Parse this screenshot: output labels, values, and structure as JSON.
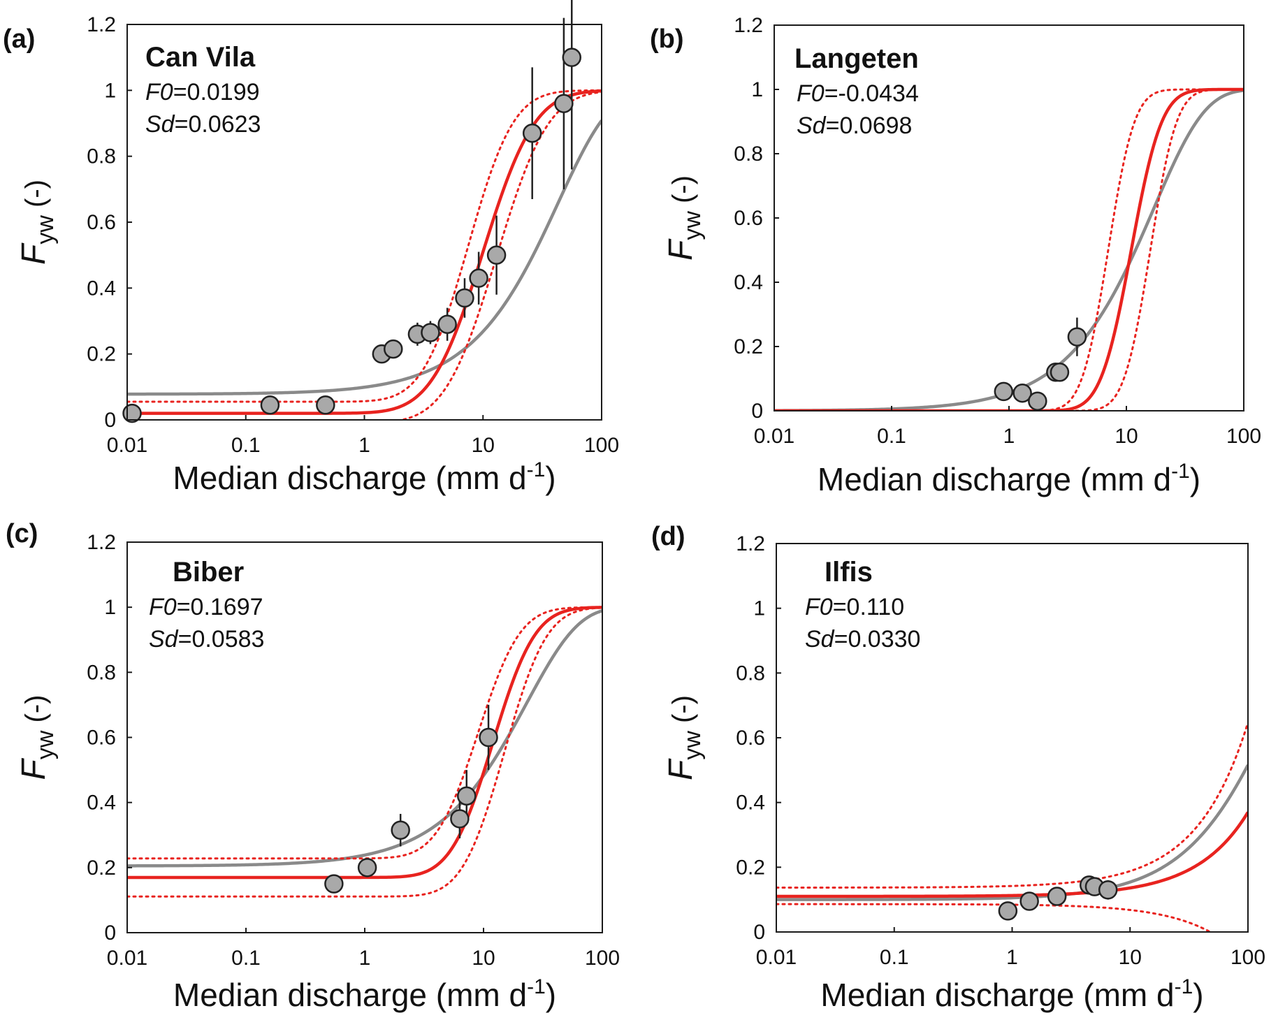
{
  "figure": {
    "x_label": "Median discharge",
    "x_unit_prefix": "(mm d",
    "x_unit_exp": "-1",
    "x_unit_suffix": ")",
    "y_label_main": "F",
    "y_label_sub": "yw",
    "y_label_unit": " (-)"
  },
  "colors": {
    "fit": "#e8231f",
    "old_fit": "#8a8a8a",
    "points": "#a9a9a9",
    "frame": "#1a1a1a"
  },
  "chart_data": [
    {
      "panel": "(a)",
      "site": "Can Vila",
      "f0_key": "F0",
      "f0_eq": "=0.0199",
      "sd_key": "Sd",
      "sd_eq": "=0.0623",
      "type": "scatter",
      "xscale": "log",
      "xlim": [
        0.01,
        100
      ],
      "ylim": [
        0,
        1.2
      ],
      "xticks": [
        0.01,
        0.1,
        1,
        10,
        100
      ],
      "xtick_labels": [
        "0.01",
        "0.1",
        "1",
        "10",
        "100"
      ],
      "yticks": [
        0,
        0.2,
        0.4,
        0.6,
        0.8,
        1,
        1.2
      ],
      "ytick_labels": [
        "0",
        "0.2",
        "0.4",
        "0.6",
        "0.8",
        "1",
        "1.2"
      ],
      "points": [
        {
          "x": 0.011,
          "y": 0.02
        },
        {
          "x": 0.16,
          "y": 0.045
        },
        {
          "x": 0.47,
          "y": 0.045
        },
        {
          "x": 1.4,
          "y": 0.2
        },
        {
          "x": 1.75,
          "y": 0.215
        },
        {
          "x": 2.8,
          "y": 0.26,
          "err": 0.035
        },
        {
          "x": 3.6,
          "y": 0.265,
          "err": 0.035
        },
        {
          "x": 5.0,
          "y": 0.29,
          "err": 0.05
        },
        {
          "x": 7.0,
          "y": 0.37,
          "err": 0.06
        },
        {
          "x": 9.2,
          "y": 0.43,
          "err": 0.08
        },
        {
          "x": 13,
          "y": 0.5,
          "err": 0.12
        },
        {
          "x": 26,
          "y": 0.87,
          "err": 0.2
        },
        {
          "x": 48,
          "y": 0.96,
          "err": 0.26
        },
        {
          "x": 56,
          "y": 1.1,
          "err": 0.34
        }
      ],
      "curves": {
        "fit": {
          "type": "erf",
          "f0": 0.0199,
          "mu": 10,
          "sigma": 2.2
        },
        "fit_upper": {
          "type": "erf",
          "f0": 0.055,
          "mu": 7.5,
          "sigma": 2.0
        },
        "fit_lower": {
          "type": "erf",
          "f0": -0.01,
          "mu": 13,
          "sigma": 2.2
        },
        "old_fit": {
          "type": "exp",
          "f0": 0.078,
          "k": 0.0231
        }
      }
    },
    {
      "panel": "(b)",
      "site": "Langeten",
      "f0_key": "F0",
      "f0_eq": "=-0.0434",
      "sd_key": "Sd",
      "sd_eq": "=0.0698",
      "type": "scatter",
      "xscale": "log",
      "xlim": [
        0.01,
        100
      ],
      "ylim": [
        0,
        1.2
      ],
      "xticks": [
        0.01,
        0.1,
        1,
        10,
        100
      ],
      "xtick_labels": [
        "0.01",
        "0.1",
        "1",
        "10",
        "100"
      ],
      "yticks": [
        0,
        0.2,
        0.4,
        0.6,
        0.8,
        1,
        1.2
      ],
      "ytick_labels": [
        "0",
        "0.2",
        "0.4",
        "0.6",
        "0.8",
        "1",
        "1.2"
      ],
      "points": [
        {
          "x": 0.9,
          "y": 0.06
        },
        {
          "x": 1.3,
          "y": 0.055
        },
        {
          "x": 1.75,
          "y": 0.03
        },
        {
          "x": 2.5,
          "y": 0.12,
          "err": 0.02
        },
        {
          "x": 2.7,
          "y": 0.12
        },
        {
          "x": 3.8,
          "y": 0.23,
          "err": 0.06
        }
      ],
      "curves": {
        "fit": {
          "type": "erf",
          "f0": 0,
          "mu": 11,
          "sigma": 1.6
        },
        "fit_upper": {
          "type": "erf",
          "f0": 0,
          "mu": 7,
          "sigma": 1.5
        },
        "fit_lower": {
          "type": "erf",
          "f0": 0,
          "mu": 16,
          "sigma": 1.5
        },
        "old_fit": {
          "type": "exp",
          "f0": 0,
          "k": 0.058
        }
      }
    },
    {
      "panel": "(c)",
      "site": "Biber",
      "f0_key": "F0",
      "f0_eq": "=0.1697",
      "sd_key": "Sd",
      "sd_eq": "=0.0583",
      "type": "scatter",
      "xscale": "log",
      "xlim": [
        0.01,
        100
      ],
      "ylim": [
        0,
        1.2
      ],
      "xticks": [
        0.01,
        0.1,
        1,
        10,
        100
      ],
      "xtick_labels": [
        "0.01",
        "0.1",
        "1",
        "10",
        "100"
      ],
      "yticks": [
        0,
        0.2,
        0.4,
        0.6,
        0.8,
        1,
        1.2
      ],
      "ytick_labels": [
        "0",
        "0.2",
        "0.4",
        "0.6",
        "0.8",
        "1",
        "1.2"
      ],
      "points": [
        {
          "x": 0.55,
          "y": 0.15
        },
        {
          "x": 1.05,
          "y": 0.2
        },
        {
          "x": 2.0,
          "y": 0.315,
          "err": 0.05
        },
        {
          "x": 6.3,
          "y": 0.35,
          "err": 0.06
        },
        {
          "x": 7.2,
          "y": 0.42,
          "err": 0.08
        },
        {
          "x": 11,
          "y": 0.6,
          "err": 0.1
        }
      ],
      "curves": {
        "fit": {
          "type": "erf",
          "f0": 0.1697,
          "mu": 12,
          "sigma": 1.9
        },
        "fit_upper": {
          "type": "erf",
          "f0": 0.228,
          "mu": 9,
          "sigma": 1.9
        },
        "fit_lower": {
          "type": "erf",
          "f0": 0.111,
          "mu": 15,
          "sigma": 1.9
        },
        "old_fit": {
          "type": "exp",
          "f0": 0.205,
          "k": 0.043
        }
      }
    },
    {
      "panel": "(d)",
      "site": "Ilfis",
      "f0_key": "F0",
      "f0_eq": "=0.110",
      "sd_key": "Sd",
      "sd_eq": "=0.0330",
      "type": "scatter",
      "xscale": "log",
      "xlim": [
        0.01,
        100
      ],
      "ylim": [
        0,
        1.2
      ],
      "xticks": [
        0.01,
        0.1,
        1,
        10,
        100
      ],
      "xtick_labels": [
        "0.01",
        "0.1",
        "1",
        "10",
        "100"
      ],
      "yticks": [
        0,
        0.2,
        0.4,
        0.6,
        0.8,
        1,
        1.2
      ],
      "ytick_labels": [
        "0",
        "0.2",
        "0.4",
        "0.6",
        "0.8",
        "1",
        "1.2"
      ],
      "points": [
        {
          "x": 0.92,
          "y": 0.065
        },
        {
          "x": 1.4,
          "y": 0.095
        },
        {
          "x": 2.4,
          "y": 0.11
        },
        {
          "x": 4.5,
          "y": 0.145,
          "err": 0.02
        },
        {
          "x": 5.0,
          "y": 0.14,
          "err": 0.02
        },
        {
          "x": 6.5,
          "y": 0.13,
          "err": 0.03
        }
      ],
      "curves": {
        "fit": {
          "type": "lin",
          "f0": 0.11,
          "k": 0.0026
        },
        "fit_upper": {
          "type": "lin",
          "f0": 0.137,
          "k": 0.0051
        },
        "fit_lower": {
          "type": "lin",
          "f0": 0.086,
          "k": -0.0018
        },
        "old_fit": {
          "type": "exp",
          "f0": 0.1,
          "k": 0.0062
        }
      }
    }
  ]
}
